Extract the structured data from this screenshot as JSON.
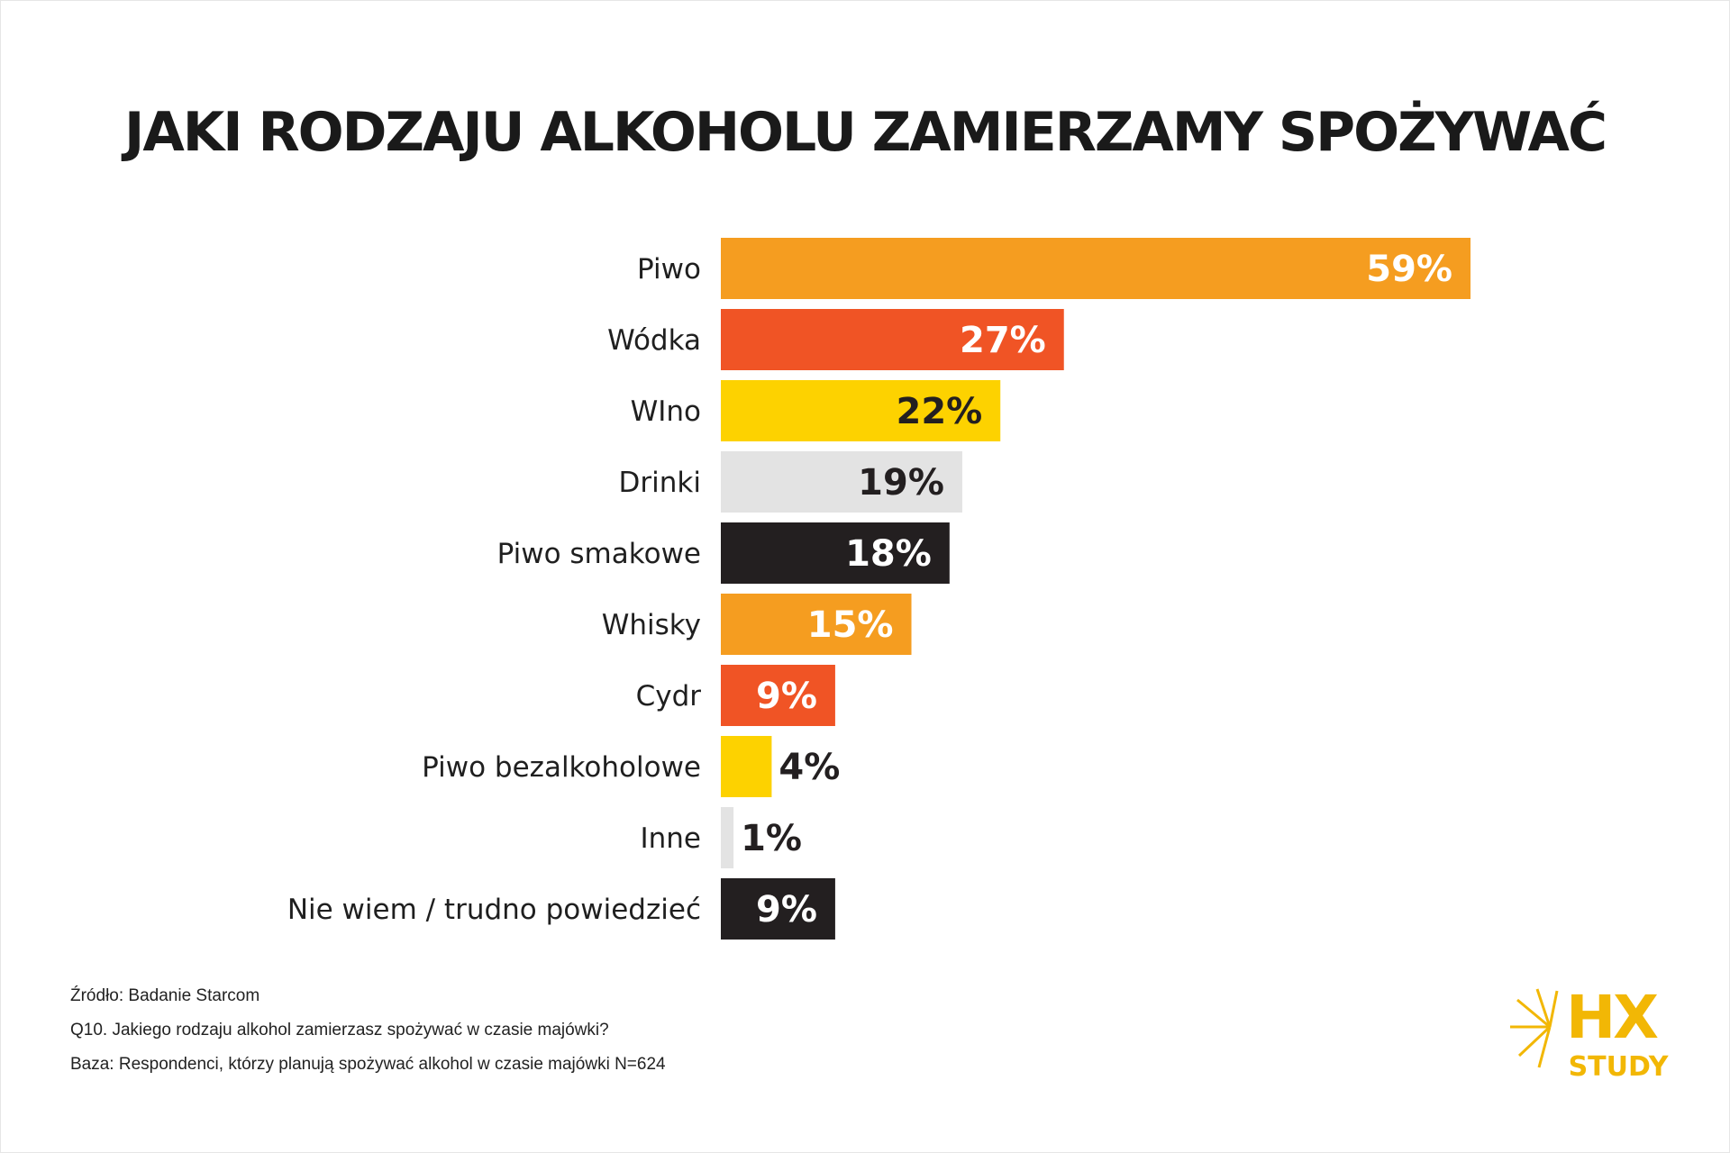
{
  "chart_data": {
    "type": "bar",
    "orientation": "horizontal",
    "title": "JAKI RODZAJU ALKOHOLU ZAMIERZAMY SPOŻYWAĆ",
    "xlabel": "",
    "ylabel": "",
    "xlim": [
      0,
      59
    ],
    "grid": false,
    "categories": [
      "Piwo",
      "Wódka",
      "WIno",
      "Drinki",
      "Piwo smakowe",
      "Whisky",
      "Cydr",
      "Piwo bezalkoholowe",
      "Inne",
      "Nie wiem / trudno powiedzieć"
    ],
    "values": [
      59,
      27,
      22,
      19,
      18,
      15,
      9,
      4,
      1,
      9
    ],
    "value_labels": [
      "59%",
      "27%",
      "22%",
      "19%",
      "18%",
      "15%",
      "9%",
      "4%",
      "1%",
      "9%"
    ],
    "bar_colors": [
      "#F59D20",
      "#F05425",
      "#FDD200",
      "#E3E3E3",
      "#231F20",
      "#F59D20",
      "#F05425",
      "#FDD200",
      "#E3E3E3",
      "#231F20"
    ],
    "label_colors": [
      "#ffffff",
      "#ffffff",
      "#231F20",
      "#231F20",
      "#ffffff",
      "#ffffff",
      "#ffffff",
      "#231F20",
      "#231F20",
      "#ffffff"
    ]
  },
  "footer": {
    "source": "Źródło: Badanie Starcom",
    "question": "Q10. Jakiego  rodzaju alkohol zamierzasz spożywać w czasie majówki?",
    "base": "Baza: Respondenci, którzy planują spożywać alkohol w czasie majówki N=624"
  },
  "logo": {
    "line1": "HX",
    "line2": "STUDY",
    "color": "#F2B705"
  }
}
